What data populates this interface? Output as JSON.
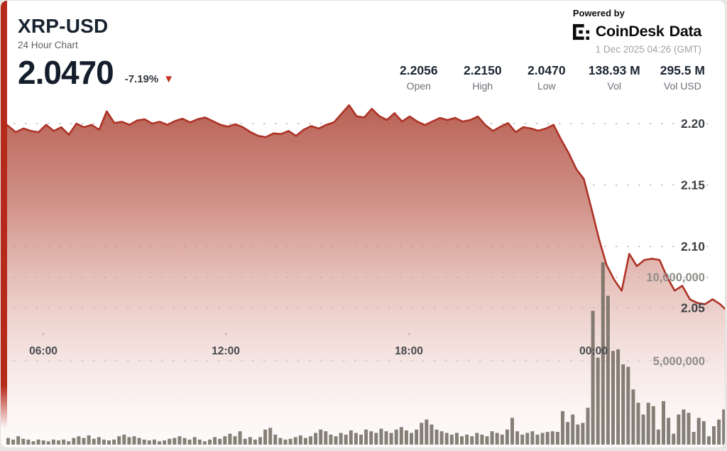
{
  "header": {
    "symbol": "XRP-USD",
    "subtitle": "24 Hour Chart",
    "price": "2.0470",
    "change_pct": "-7.19%",
    "down_arrow": "▼"
  },
  "powered_by": {
    "label": "Powered by",
    "brand_word1": "CoinDesk",
    "brand_word2": "Data",
    "timestamp": "1 Dec 2025 04:26 (GMT)"
  },
  "stats": [
    {
      "value": "2.2056",
      "label": "Open"
    },
    {
      "value": "2.2150",
      "label": "High"
    },
    {
      "value": "2.0470",
      "label": "Low"
    },
    {
      "value": "138.93 M",
      "label": "Vol"
    },
    {
      "value": "295.5 M",
      "label": "Vol USD"
    }
  ],
  "colors": {
    "accent_red": "#b62a1b",
    "line_red": "#ad3226",
    "triangle_red": "#c23420",
    "bar_gray": "#716b61",
    "grid_gray": "#a6a6a6",
    "price_tick_text": "#3e4145",
    "volume_tick_text": "#8f8c88",
    "time_tick_text": "#47494d"
  },
  "chart_data": {
    "type": "area",
    "title": "XRP-USD 24 Hour Chart",
    "open": 2.2056,
    "high": 2.215,
    "low": 2.047,
    "close": 2.047,
    "volume_total": "138.93 M",
    "volume_usd_total": "295.5 M",
    "x_ticks": [
      "06:00",
      "12:00",
      "18:00",
      "00:00"
    ],
    "price_axis": {
      "ticks": [
        "2.20",
        "2.15",
        "2.10",
        "2.05"
      ],
      "values": [
        2.2,
        2.15,
        2.1,
        2.05
      ]
    },
    "volume_axis": {
      "ticks": [
        "10,000,000",
        "5,000,000"
      ],
      "values_m": [
        10,
        5
      ]
    },
    "grid": "dotted-horizontal",
    "legend": "none",
    "prices": [
      2.203,
      2.198,
      2.193,
      2.196,
      2.194,
      2.193,
      2.199,
      2.194,
      2.197,
      2.191,
      2.2,
      2.197,
      2.199,
      2.195,
      2.21,
      2.2005,
      2.2015,
      2.199,
      2.2025,
      2.2035,
      2.2,
      2.2015,
      2.199,
      2.202,
      2.204,
      2.201,
      2.2035,
      2.205,
      2.202,
      2.199,
      2.1975,
      2.1995,
      2.197,
      2.193,
      2.19,
      2.189,
      2.192,
      2.1915,
      2.194,
      2.19,
      2.195,
      2.198,
      2.196,
      2.199,
      2.201,
      2.208,
      2.215,
      2.206,
      2.205,
      2.212,
      2.206,
      2.203,
      2.2085,
      2.2017,
      2.2058,
      2.2017,
      2.1988,
      2.2017,
      2.2046,
      2.2029,
      2.2046,
      2.2017,
      2.2029,
      2.2058,
      2.1988,
      2.194,
      2.1975,
      2.2004,
      2.193,
      2.1971,
      2.196,
      2.1942,
      2.196,
      2.199,
      2.187,
      2.176,
      2.163,
      2.155,
      2.131,
      2.106,
      2.085,
      2.073,
      2.064,
      2.094,
      2.084,
      2.089,
      2.09,
      2.089,
      2.075,
      2.064,
      2.068,
      2.057,
      2.054,
      2.053,
      2.057,
      2.053,
      2.047
    ],
    "volumes_m": [
      0.4,
      0.3,
      0.5,
      0.35,
      0.3,
      0.2,
      0.3,
      0.25,
      0.2,
      0.3,
      0.25,
      0.3,
      0.2,
      0.4,
      0.5,
      0.4,
      0.55,
      0.35,
      0.45,
      0.3,
      0.25,
      0.3,
      0.5,
      0.6,
      0.45,
      0.5,
      0.4,
      0.3,
      0.25,
      0.3,
      0.2,
      0.25,
      0.35,
      0.4,
      0.5,
      0.4,
      0.3,
      0.45,
      0.3,
      0.2,
      0.3,
      0.45,
      0.35,
      0.5,
      0.65,
      0.5,
      0.8,
      0.35,
      0.45,
      0.3,
      0.45,
      0.9,
      1.0,
      0.6,
      0.4,
      0.3,
      0.35,
      0.45,
      0.55,
      0.4,
      0.5,
      0.7,
      0.9,
      0.8,
      0.6,
      0.5,
      0.7,
      0.6,
      0.85,
      0.7,
      0.6,
      0.9,
      0.8,
      0.7,
      0.95,
      0.8,
      0.7,
      0.9,
      1.05,
      0.85,
      0.7,
      0.9,
      1.3,
      1.5,
      1.2,
      0.9,
      0.8,
      0.7,
      0.6,
      0.7,
      0.5,
      0.6,
      0.5,
      0.7,
      0.6,
      0.5,
      0.8,
      0.7,
      0.6,
      0.9,
      1.6,
      0.8,
      0.6,
      0.7,
      0.8,
      0.6,
      0.7,
      0.76,
      0.8,
      0.76,
      2.0,
      1.35,
      1.8,
      1.2,
      1.3,
      2.2,
      8.0,
      5.2,
      10.9,
      8.9,
      5.6,
      5.7,
      4.8,
      4.65,
      3.3,
      2.5,
      1.8,
      2.5,
      2.3,
      0.9,
      2.6,
      1.6,
      0.65,
      1.8,
      2.1,
      1.9,
      0.76,
      1.6,
      1.4,
      0.5,
      1.1,
      1.5,
      2.1
    ]
  }
}
